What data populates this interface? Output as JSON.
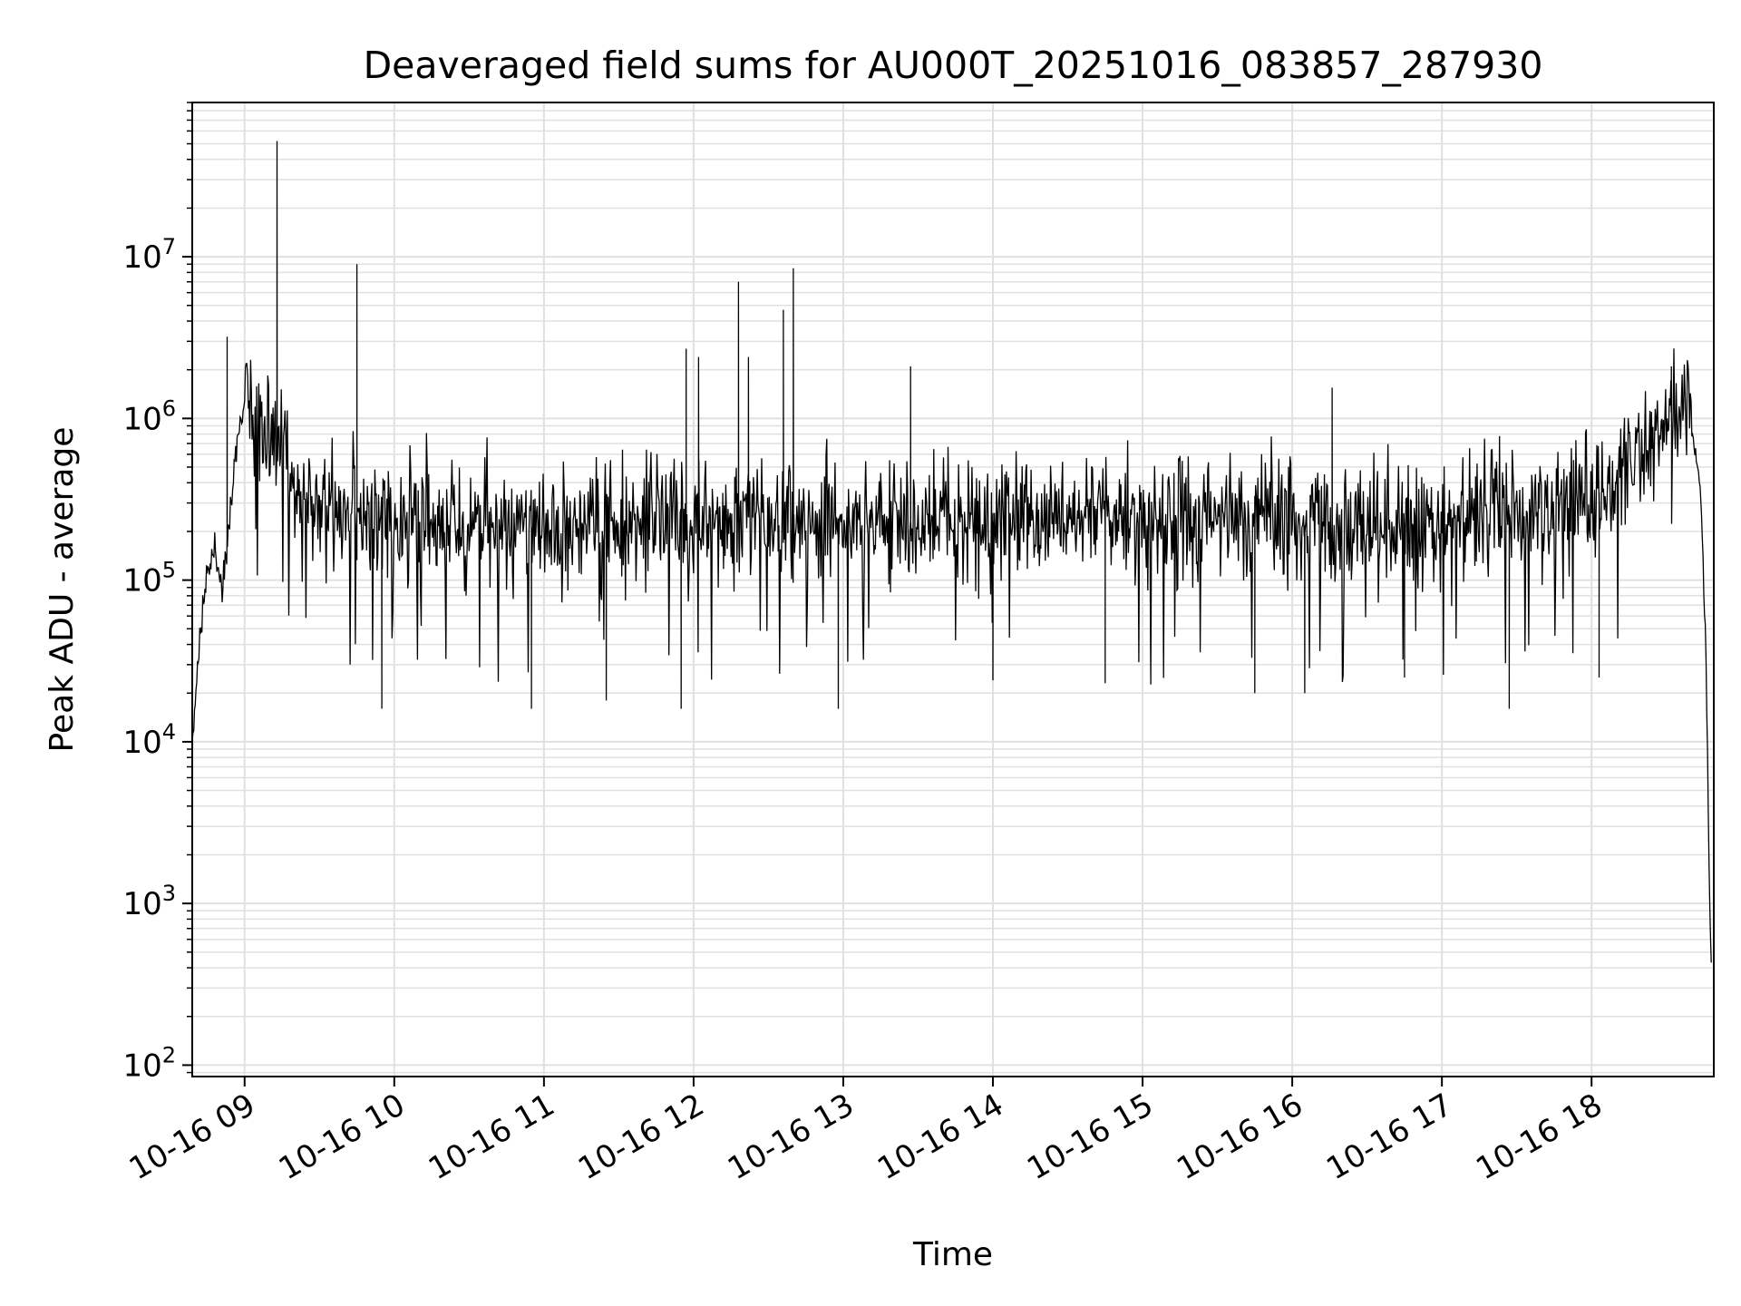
{
  "chart_data": {
    "type": "line",
    "title": "Deaveraged field sums for AU000T_20251016_083857_287930",
    "xlabel": "Time",
    "ylabel": "Peak ADU - average",
    "yscale": "log",
    "ylim": [
      85,
      90000000
    ],
    "xlim": [
      "10-16 08:39",
      "10-16 18:49"
    ],
    "grid": true,
    "line_color": "#000000",
    "grid_color": "#e0e0e0",
    "x_tick_labels": [
      "10-16 09",
      "10-16 10",
      "10-16 11",
      "10-16 12",
      "10-16 13",
      "10-16 14",
      "10-16 15",
      "10-16 16",
      "10-16 17",
      "10-16 18"
    ],
    "y_tick_labels": [
      {
        "base": "10",
        "exp": "2"
      },
      {
        "base": "10",
        "exp": "3"
      },
      {
        "base": "10",
        "exp": "4"
      },
      {
        "base": "10",
        "exp": "5"
      },
      {
        "base": "10",
        "exp": "6"
      },
      {
        "base": "10",
        "exp": "7"
      }
    ],
    "series": [
      {
        "x": [
          "10-16 08:39",
          "10-16 08:42",
          "10-16 08:45",
          "10-16 08:48",
          "10-16 08:51",
          "10-16 08:54",
          "10-16 08:57",
          "10-16 09:00",
          "10-16 09:03",
          "10-16 09:06",
          "10-16 09:10",
          "10-16 09:15",
          "10-16 09:20",
          "10-16 09:30",
          "10-16 09:45",
          "10-16 10:00",
          "10-16 10:30",
          "10-16 11:00",
          "10-16 11:30",
          "10-16 12:00",
          "10-16 12:30",
          "10-16 13:00",
          "10-16 13:30",
          "10-16 14:00",
          "10-16 14:30",
          "10-16 15:00",
          "10-16 15:30",
          "10-16 16:00",
          "10-16 16:30",
          "10-16 17:00",
          "10-16 17:30",
          "10-16 17:50",
          "10-16 18:00",
          "10-16 18:10",
          "10-16 18:20",
          "10-16 18:30",
          "10-16 18:36",
          "10-16 18:40",
          "10-16 18:44",
          "10-16 18:46",
          "10-16 18:47",
          "10-16 18:48"
        ],
        "values": [
          10000,
          40000,
          110000,
          160000,
          90000,
          250000,
          700000,
          1300000,
          1100000,
          900000,
          700000,
          500000,
          380000,
          300000,
          260000,
          240000,
          220000,
          210000,
          220000,
          230000,
          250000,
          240000,
          230000,
          230000,
          230000,
          220000,
          230000,
          220000,
          210000,
          230000,
          260000,
          290000,
          330000,
          400000,
          600000,
          1000000,
          1300000,
          900000,
          300000,
          30000,
          2000,
          400
        ]
      }
    ],
    "spikes": [
      {
        "x": "10-16 08:53",
        "value": 3200000
      },
      {
        "x": "10-16 09:13",
        "value": 52000000
      },
      {
        "x": "10-16 09:45",
        "value": 9000000
      },
      {
        "x": "10-16 11:57",
        "value": 2700000
      },
      {
        "x": "10-16 12:02",
        "value": 2400000
      },
      {
        "x": "10-16 12:18",
        "value": 7000000
      },
      {
        "x": "10-16 12:22",
        "value": 2400000
      },
      {
        "x": "10-16 12:36",
        "value": 4700000
      },
      {
        "x": "10-16 12:40",
        "value": 8500000
      },
      {
        "x": "10-16 13:27",
        "value": 2100000
      },
      {
        "x": "10-16 16:16",
        "value": 1550000
      },
      {
        "x": "10-16 18:32",
        "value": 2100000
      }
    ],
    "dips": [
      {
        "x": "10-16 09:55",
        "value": 16000
      },
      {
        "x": "10-16 10:55",
        "value": 16000
      },
      {
        "x": "10-16 11:25",
        "value": 18000
      },
      {
        "x": "10-16 11:55",
        "value": 16000
      },
      {
        "x": "10-16 12:58",
        "value": 16000
      },
      {
        "x": "10-16 14:00",
        "value": 24000
      },
      {
        "x": "10-16 14:45",
        "value": 23000
      },
      {
        "x": "10-16 15:45",
        "value": 20000
      },
      {
        "x": "10-16 16:05",
        "value": 20000
      },
      {
        "x": "10-16 16:45",
        "value": 25000
      },
      {
        "x": "10-16 17:27",
        "value": 16000
      },
      {
        "x": "10-16 18:03",
        "value": 25000
      }
    ]
  }
}
